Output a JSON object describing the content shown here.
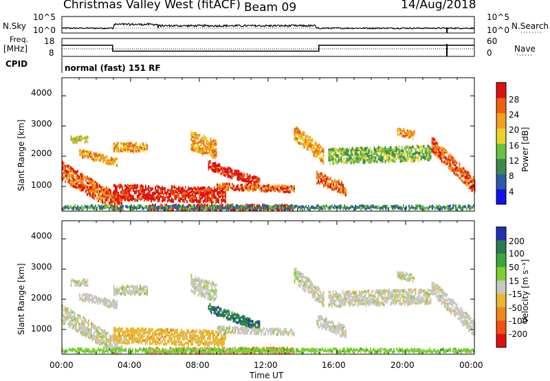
{
  "header": {
    "station": "Christmas Valley West (fitACF)",
    "beam": "Beam 09",
    "date": "14/Aug/2018"
  },
  "left_labels": {
    "nsky": "N.Sky",
    "freq_line1": "Freq.",
    "freq_line2": "[MHz]",
    "cpid": "CPID"
  },
  "right_labels": {
    "nsearch": "N.Search",
    "nave": "Nave"
  },
  "cpid_text": "normal (fast) 151 RF",
  "chart_data": [
    {
      "type": "line",
      "name": "noise-panel",
      "left_axis": {
        "label": "N.Sky",
        "ticks": [
          "10^5",
          "10^0"
        ]
      },
      "right_axis": {
        "label": "N.Search",
        "ticks": [
          "10^5",
          "10^0"
        ]
      },
      "x_range_hours": [
        0,
        24
      ]
    },
    {
      "type": "line",
      "name": "freq-nave-panel",
      "left_axis": {
        "label": "Freq. [MHz]",
        "ticks": [
          "18",
          "8"
        ]
      },
      "right_axis": {
        "label": "Nave",
        "ticks": [
          "60",
          "0"
        ]
      },
      "freq_steps": [
        {
          "x": 0,
          "y": 14.5
        },
        {
          "x": 2.95,
          "y": 14.5
        },
        {
          "x": 2.95,
          "y": 10.5
        },
        {
          "x": 14.95,
          "y": 10.5
        },
        {
          "x": 14.95,
          "y": 14.5
        },
        {
          "x": 24,
          "y": 14.5
        }
      ],
      "x_range_hours": [
        0,
        24
      ]
    },
    {
      "type": "heatmap",
      "name": "power",
      "ylabel": "Slant Range [km]",
      "ylim": [
        180,
        4600
      ],
      "yticks": [
        "1000",
        "2000",
        "3000",
        "4000"
      ],
      "colorbar": {
        "label": "Power [dB]",
        "ticks": [
          "4",
          "8",
          "12",
          "16",
          "20",
          "24",
          "28"
        ],
        "colors": [
          "#1010e8",
          "#2d5aa8",
          "#3a8a50",
          "#6cc040",
          "#e8d22a",
          "#f0a020",
          "#f06010",
          "#e01010"
        ]
      }
    },
    {
      "type": "heatmap",
      "name": "velocity",
      "ylabel": "Slant Range [km]",
      "ylim": [
        180,
        4600
      ],
      "yticks": [
        "1000",
        "2000",
        "3000",
        "4000"
      ],
      "colorbar": {
        "label": "Velocity [m s⁻¹]",
        "ticks": [
          "200",
          "100",
          "50",
          "15",
          "-15",
          "-50",
          "-100",
          "-200"
        ],
        "colors": [
          "#2030b0",
          "#2c7a50",
          "#3aa838",
          "#7ad030",
          "#c8c8c0",
          "#e8b830",
          "#f08820",
          "#f05010",
          "#e01010"
        ]
      }
    }
  ],
  "xaxis": {
    "label": "Time UT",
    "ticks": [
      "00:00",
      "04:00",
      "08:00",
      "12:00",
      "16:00",
      "20:00",
      "00:00"
    ]
  }
}
